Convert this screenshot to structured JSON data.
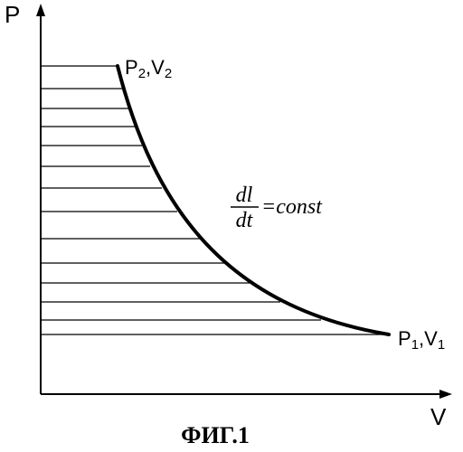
{
  "axes": {
    "y_label": "P",
    "x_label": "V"
  },
  "points": {
    "start": {
      "base_1": "P",
      "sub_1": "2",
      "sep": ",",
      "base_2": "V",
      "sub_2": "2"
    },
    "end": {
      "base_1": "P",
      "sub_1": "1",
      "sep": ",",
      "base_2": "V",
      "sub_2": "1"
    }
  },
  "equation": {
    "numerator": "dl",
    "denominator": "dt",
    "rhs": "=const"
  },
  "caption": "ФИГ.1",
  "colors": {
    "ink": "#000000",
    "background": "#ffffff"
  }
}
